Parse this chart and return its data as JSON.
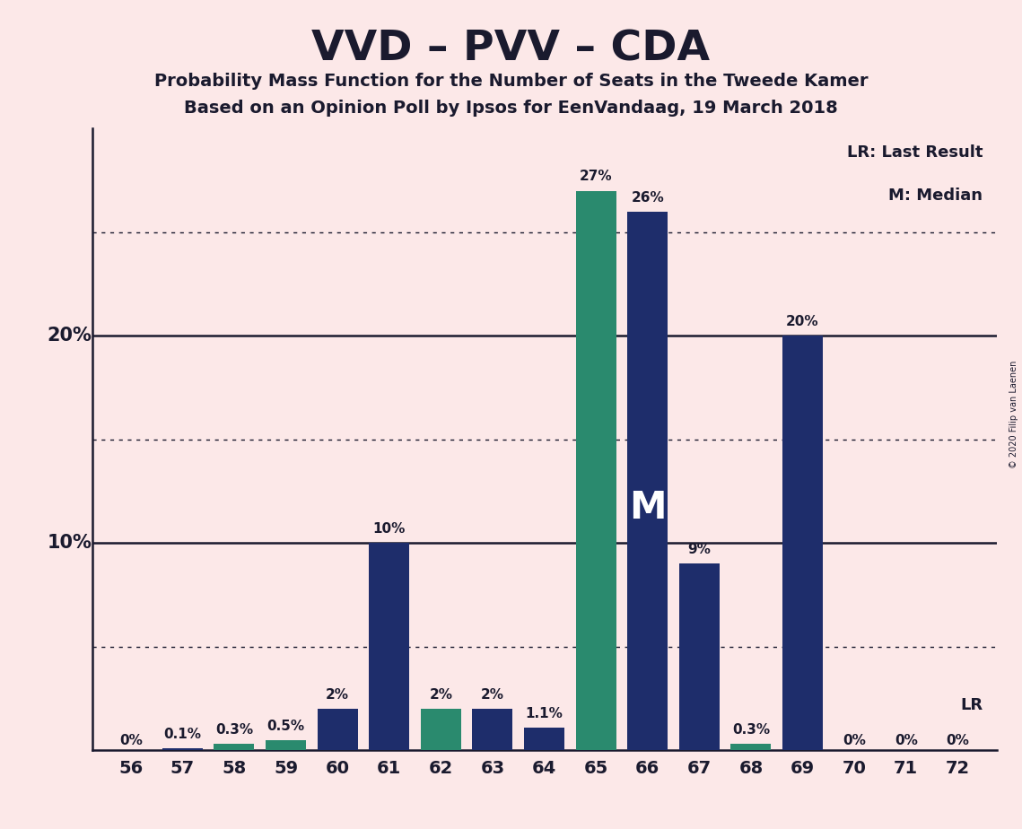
{
  "title": "VVD – PVV – CDA",
  "subtitle1": "Probability Mass Function for the Number of Seats in the Tweede Kamer",
  "subtitle2": "Based on an Opinion Poll by Ipsos for EenVandaag, 19 March 2018",
  "categories": [
    56,
    57,
    58,
    59,
    60,
    61,
    62,
    63,
    64,
    65,
    66,
    67,
    68,
    69,
    70,
    71,
    72
  ],
  "values": [
    0.0,
    0.1,
    0.3,
    0.5,
    2.0,
    10.0,
    2.0,
    2.0,
    1.1,
    27.0,
    26.0,
    9.0,
    0.3,
    20.0,
    0.0,
    0.0,
    0.0
  ],
  "teal_seats": [
    58,
    59,
    62,
    65,
    68
  ],
  "labels": [
    "0%",
    "0.1%",
    "0.3%",
    "0.5%",
    "2%",
    "10%",
    "2%",
    "2%",
    "1.1%",
    "27%",
    "26%",
    "9%",
    "0.3%",
    "20%",
    "0%",
    "0%",
    "0%"
  ],
  "show_label": [
    true,
    true,
    true,
    true,
    true,
    true,
    true,
    true,
    true,
    true,
    true,
    true,
    true,
    true,
    true,
    true,
    true
  ],
  "background_color": "#fce8e8",
  "navy_color": "#1e2d6b",
  "teal_color": "#2a8a6e",
  "text_color": "#1a1a2e",
  "median_label_bar": 66,
  "ylim_max": 30,
  "solid_yticks": [
    10,
    20
  ],
  "dotted_yticks": [
    5,
    15,
    25
  ],
  "copyright": "© 2020 Filip van Laenen",
  "legend_lr": "LR: Last Result",
  "legend_m": "M: Median",
  "lr_label": "LR"
}
